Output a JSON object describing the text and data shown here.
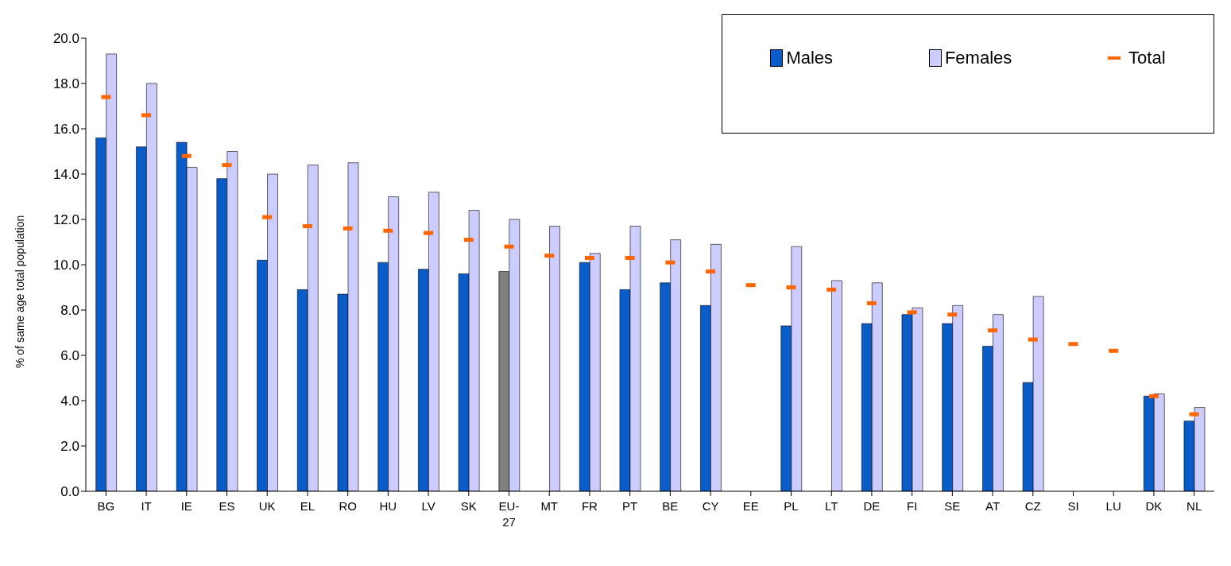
{
  "chart_data": {
    "type": "bar",
    "ylabel": "% of same age total population",
    "categories": [
      "BG",
      "IT",
      "IE",
      "ES",
      "UK",
      "EL",
      "RO",
      "HU",
      "LV",
      "SK",
      "EU-27",
      "MT",
      "FR",
      "PT",
      "BE",
      "CY",
      "EE",
      "PL",
      "LT",
      "DE",
      "FI",
      "SE",
      "AT",
      "CZ",
      "SI",
      "LU",
      "DK",
      "NL"
    ],
    "series": [
      {
        "name": "Males",
        "color": "#0a5cc8",
        "colors": [
          "#0a5cc8",
          "#0a5cc8",
          "#0a5cc8",
          "#0a5cc8",
          "#0a5cc8",
          "#0a5cc8",
          "#0a5cc8",
          "#0a5cc8",
          "#0a5cc8",
          "#0a5cc8",
          "#808080",
          "#0a5cc8",
          "#0a5cc8",
          "#0a5cc8",
          "#0a5cc8",
          "#0a5cc8",
          "#0a5cc8",
          "#0a5cc8",
          "#0a5cc8",
          "#0a5cc8",
          "#0a5cc8",
          "#0a5cc8",
          "#0a5cc8",
          "#0a5cc8",
          "#0a5cc8",
          "#0a5cc8",
          "#0a5cc8",
          "#0a5cc8"
        ],
        "values": [
          15.6,
          15.2,
          15.4,
          13.8,
          10.2,
          8.9,
          8.7,
          10.1,
          9.8,
          9.6,
          9.7,
          null,
          10.1,
          8.9,
          9.2,
          8.2,
          null,
          7.3,
          null,
          7.4,
          7.8,
          7.4,
          6.4,
          4.8,
          null,
          null,
          4.2,
          3.1
        ]
      },
      {
        "name": "Females",
        "color": "#ccccff",
        "values": [
          19.3,
          18.0,
          14.3,
          15.0,
          14.0,
          14.4,
          14.5,
          13.0,
          13.2,
          12.4,
          12.0,
          11.7,
          10.5,
          11.7,
          11.1,
          10.9,
          null,
          10.8,
          9.3,
          9.2,
          8.1,
          8.2,
          7.8,
          8.6,
          null,
          null,
          4.3,
          3.7
        ]
      },
      {
        "name": "Total",
        "type": "scatter",
        "color": "#ff6600",
        "x": [
          "BG",
          "IT",
          "IE",
          "ES",
          "UK",
          "EL",
          "RO",
          "HU",
          "LV",
          "SK",
          "EU-27",
          "MT",
          "FR",
          "PT",
          "BE",
          "CY",
          "EE",
          "PL",
          "LT",
          "DE",
          "FI",
          "SE",
          "AT",
          "CZ",
          "SI",
          "LU",
          "DK",
          "NL"
        ],
        "values": [
          17.4,
          16.6,
          14.8,
          14.4,
          12.1,
          11.7,
          11.6,
          11.5,
          11.4,
          11.1,
          10.8,
          10.4,
          10.3,
          10.3,
          10.1,
          9.7,
          9.1,
          9.0,
          8.9,
          8.3,
          7.9,
          7.8,
          7.1,
          6.7,
          6.5,
          6.2,
          4.2,
          3.4
        ]
      }
    ],
    "ylim": [
      0,
      20
    ],
    "yticks": [
      {
        "value": 0,
        "label": "0.0"
      },
      {
        "value": 2,
        "label": "2.0"
      },
      {
        "value": 4,
        "label": "4.0"
      },
      {
        "value": 6,
        "label": "6.0"
      },
      {
        "value": 8,
        "label": "8.0"
      },
      {
        "value": 10,
        "label": "10.0"
      },
      {
        "value": 12,
        "label": "12.0"
      },
      {
        "value": 14,
        "label": "14.0"
      },
      {
        "value": 16,
        "label": "16.0"
      },
      {
        "value": 18,
        "label": "18.0"
      },
      {
        "value": 20,
        "label": "20.0"
      }
    ],
    "grid": false,
    "legend": "top right"
  }
}
